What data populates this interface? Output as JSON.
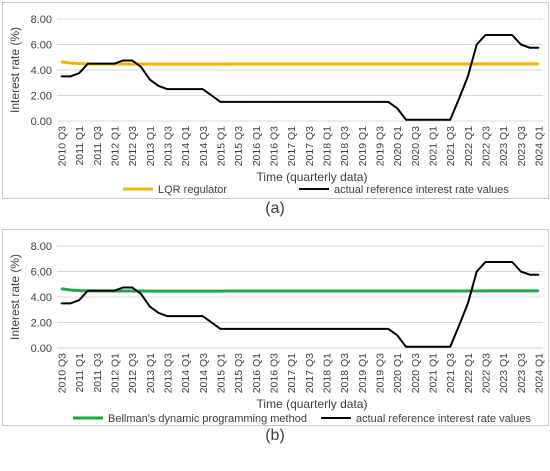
{
  "chart_data": [
    {
      "type": "line",
      "panel_label": "(a)",
      "title": "",
      "xlabel": "Time (quarterly data)",
      "ylabel": "Interest rate (%)",
      "ylim": [
        0,
        8
      ],
      "yticks": [
        "0.00",
        "2.00",
        "4.00",
        "6.00",
        "8.00"
      ],
      "grid": true,
      "legend_position": "bottom",
      "x": [
        "2010 Q3",
        "2010 Q4",
        "2011 Q1",
        "2011 Q2",
        "2011 Q3",
        "2011 Q4",
        "2012 Q1",
        "2012 Q2",
        "2012 Q3",
        "2012 Q4",
        "2013 Q1",
        "2013 Q2",
        "2013 Q3",
        "2013 Q4",
        "2014 Q1",
        "2014 Q2",
        "2014 Q3",
        "2014 Q4",
        "2015 Q1",
        "2015 Q2",
        "2015 Q3",
        "2015 Q4",
        "2016 Q1",
        "2016 Q2",
        "2016 Q3",
        "2016 Q4",
        "2017 Q1",
        "2017 Q2",
        "2017 Q3",
        "2017 Q4",
        "2018 Q1",
        "2018 Q2",
        "2018 Q3",
        "2018 Q4",
        "2019 Q1",
        "2019 Q2",
        "2019 Q3",
        "2019 Q4",
        "2020 Q1",
        "2020 Q2",
        "2020 Q3",
        "2020 Q4",
        "2021 Q1",
        "2021 Q2",
        "2021 Q3",
        "2021 Q4",
        "2022 Q1",
        "2022 Q2",
        "2022 Q3",
        "2022 Q4",
        "2023 Q1",
        "2023 Q2",
        "2023 Q3",
        "2023 Q4",
        "2024 Q1"
      ],
      "xtick_labels": [
        "2010 Q3",
        "2011 Q1",
        "2011 Q3",
        "2012 Q1",
        "2012 Q3",
        "2013 Q1",
        "2013 Q3",
        "2014 Q1",
        "2014 Q3",
        "2015 Q1",
        "2015 Q3",
        "2016 Q1",
        "2016 Q3",
        "2017 Q1",
        "2017 Q3",
        "2018 Q1",
        "2018 Q3",
        "2019 Q1",
        "2019 Q3",
        "2020 Q1",
        "2020 Q3",
        "2021 Q1",
        "2021 Q3",
        "2022 Q1",
        "2022 Q3",
        "2023 Q1",
        "2023 Q3",
        "2024 Q1"
      ],
      "series": [
        {
          "name": "LQR regulator",
          "color": "#f5b400",
          "values": [
            4.65,
            4.55,
            4.5,
            4.48,
            4.47,
            4.47,
            4.47,
            4.47,
            4.47,
            4.47,
            4.46,
            4.46,
            4.46,
            4.46,
            4.46,
            4.46,
            4.46,
            4.46,
            4.46,
            4.47,
            4.47,
            4.47,
            4.47,
            4.47,
            4.47,
            4.47,
            4.47,
            4.47,
            4.47,
            4.47,
            4.47,
            4.47,
            4.47,
            4.47,
            4.47,
            4.47,
            4.47,
            4.47,
            4.47,
            4.47,
            4.47,
            4.47,
            4.47,
            4.47,
            4.47,
            4.47,
            4.47,
            4.47,
            4.48,
            4.48,
            4.48,
            4.48,
            4.48,
            4.48,
            4.48
          ]
        },
        {
          "name": "actual reference interest rate values",
          "color": "#000000",
          "values": [
            3.5,
            3.5,
            3.75,
            4.5,
            4.5,
            4.5,
            4.5,
            4.75,
            4.75,
            4.25,
            3.25,
            2.75,
            2.5,
            2.5,
            2.5,
            2.5,
            2.5,
            2.0,
            1.5,
            1.5,
            1.5,
            1.5,
            1.5,
            1.5,
            1.5,
            1.5,
            1.5,
            1.5,
            1.5,
            1.5,
            1.5,
            1.5,
            1.5,
            1.5,
            1.5,
            1.5,
            1.5,
            1.5,
            1.0,
            0.1,
            0.1,
            0.1,
            0.1,
            0.1,
            0.1,
            1.75,
            3.5,
            6.0,
            6.75,
            6.75,
            6.75,
            6.75,
            6.0,
            5.75,
            5.75
          ]
        }
      ]
    },
    {
      "type": "line",
      "panel_label": "(b)",
      "title": "",
      "xlabel": "Time (quarterly data)",
      "ylabel": "Interest rate (%)",
      "ylim": [
        0,
        8
      ],
      "yticks": [
        "0.00",
        "2.00",
        "4.00",
        "6.00",
        "8.00"
      ],
      "grid": true,
      "legend_position": "bottom",
      "x": [
        "2010 Q3",
        "2010 Q4",
        "2011 Q1",
        "2011 Q2",
        "2011 Q3",
        "2011 Q4",
        "2012 Q1",
        "2012 Q2",
        "2012 Q3",
        "2012 Q4",
        "2013 Q1",
        "2013 Q2",
        "2013 Q3",
        "2013 Q4",
        "2014 Q1",
        "2014 Q2",
        "2014 Q3",
        "2014 Q4",
        "2015 Q1",
        "2015 Q2",
        "2015 Q3",
        "2015 Q4",
        "2016 Q1",
        "2016 Q2",
        "2016 Q3",
        "2016 Q4",
        "2017 Q1",
        "2017 Q2",
        "2017 Q3",
        "2017 Q4",
        "2018 Q1",
        "2018 Q2",
        "2018 Q3",
        "2018 Q4",
        "2019 Q1",
        "2019 Q2",
        "2019 Q3",
        "2019 Q4",
        "2020 Q1",
        "2020 Q2",
        "2020 Q3",
        "2020 Q4",
        "2021 Q1",
        "2021 Q2",
        "2021 Q3",
        "2021 Q4",
        "2022 Q1",
        "2022 Q2",
        "2022 Q3",
        "2022 Q4",
        "2023 Q1",
        "2023 Q2",
        "2023 Q3",
        "2023 Q4",
        "2024 Q1"
      ],
      "xtick_labels": [
        "2010 Q3",
        "2011 Q1",
        "2011 Q3",
        "2012 Q1",
        "2012 Q3",
        "2013 Q1",
        "2013 Q3",
        "2014 Q1",
        "2014 Q3",
        "2015 Q1",
        "2015 Q3",
        "2016 Q1",
        "2016 Q3",
        "2017 Q1",
        "2017 Q3",
        "2018 Q1",
        "2018 Q3",
        "2019 Q1",
        "2019 Q3",
        "2020 Q1",
        "2020 Q3",
        "2021 Q1",
        "2021 Q3",
        "2022 Q1",
        "2022 Q3",
        "2023 Q1",
        "2023 Q3",
        "2024 Q1"
      ],
      "series": [
        {
          "name": "Bellman's dynamic programming method",
          "color": "#1ea84a",
          "values": [
            4.65,
            4.55,
            4.5,
            4.48,
            4.47,
            4.47,
            4.47,
            4.47,
            4.47,
            4.47,
            4.46,
            4.46,
            4.46,
            4.46,
            4.46,
            4.46,
            4.46,
            4.46,
            4.46,
            4.47,
            4.47,
            4.47,
            4.47,
            4.47,
            4.47,
            4.47,
            4.47,
            4.47,
            4.47,
            4.47,
            4.47,
            4.47,
            4.47,
            4.47,
            4.47,
            4.47,
            4.47,
            4.47,
            4.47,
            4.47,
            4.47,
            4.47,
            4.47,
            4.47,
            4.47,
            4.47,
            4.47,
            4.47,
            4.48,
            4.48,
            4.48,
            4.48,
            4.48,
            4.48,
            4.48
          ]
        },
        {
          "name": "actual reference interest rate values",
          "color": "#000000",
          "values": [
            3.5,
            3.5,
            3.75,
            4.5,
            4.5,
            4.5,
            4.5,
            4.75,
            4.75,
            4.25,
            3.25,
            2.75,
            2.5,
            2.5,
            2.5,
            2.5,
            2.5,
            2.0,
            1.5,
            1.5,
            1.5,
            1.5,
            1.5,
            1.5,
            1.5,
            1.5,
            1.5,
            1.5,
            1.5,
            1.5,
            1.5,
            1.5,
            1.5,
            1.5,
            1.5,
            1.5,
            1.5,
            1.5,
            1.0,
            0.1,
            0.1,
            0.1,
            0.1,
            0.1,
            0.1,
            1.75,
            3.5,
            6.0,
            6.75,
            6.75,
            6.75,
            6.75,
            6.0,
            5.75,
            5.75
          ]
        }
      ]
    }
  ]
}
